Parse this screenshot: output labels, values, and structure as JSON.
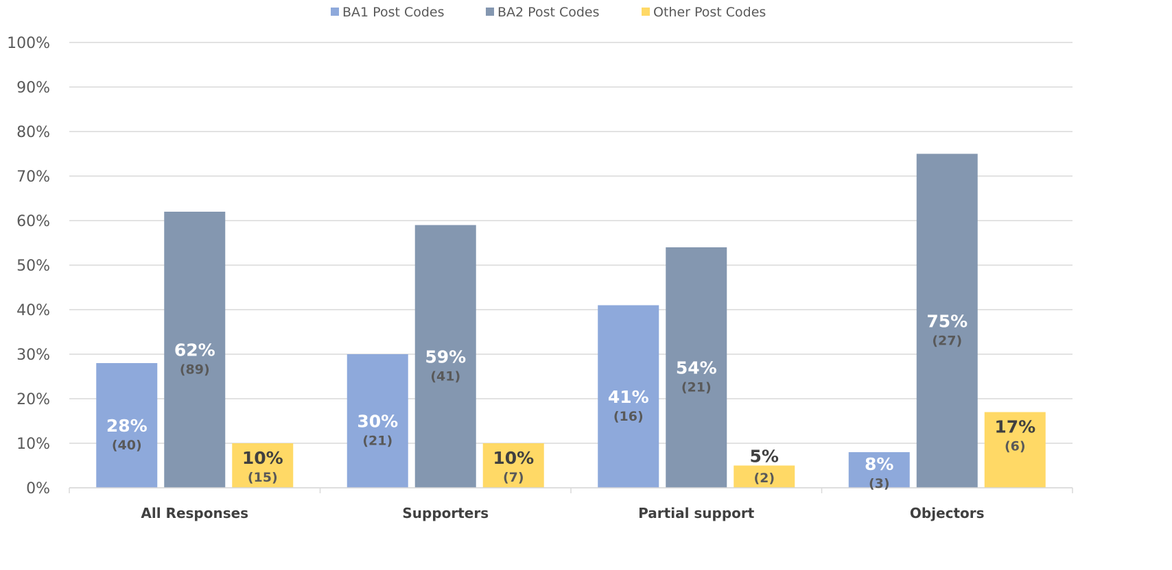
{
  "chart_data": {
    "type": "bar",
    "categories": [
      "All Responses",
      "Supporters",
      "Partial support",
      "Objectors"
    ],
    "series": [
      {
        "name": "BA1 Post Codes",
        "color": "#8EA9DB",
        "values": [
          28,
          30,
          41,
          8
        ],
        "labels": [
          "28%",
          "30%",
          "41%",
          "8%"
        ],
        "counts": [
          "(40)",
          "(21)",
          "(16)",
          "(3)"
        ],
        "label_color": "#ffffff"
      },
      {
        "name": "BA2 Post Codes",
        "color": "#8497B0",
        "values": [
          62,
          59,
          54,
          75
        ],
        "labels": [
          "62%",
          "59%",
          "54%",
          "75%"
        ],
        "counts": [
          "(89)",
          "(41)",
          "(21)",
          "(27)"
        ],
        "label_color": "#ffffff"
      },
      {
        "name": "Other Post Codes",
        "color": "#FFD966",
        "values": [
          10,
          10,
          5,
          17
        ],
        "labels": [
          "10%",
          "10%",
          "5%",
          "17%"
        ],
        "counts": [
          "(15)",
          "(7)",
          "(2)",
          "(6)"
        ],
        "label_color": "#404040"
      }
    ],
    "ylim": [
      0,
      100
    ],
    "yticks": [
      "0%",
      "10%",
      "20%",
      "30%",
      "40%",
      "50%",
      "60%",
      "70%",
      "80%",
      "90%",
      "100%"
    ],
    "grid": true,
    "legend_position": "top"
  }
}
